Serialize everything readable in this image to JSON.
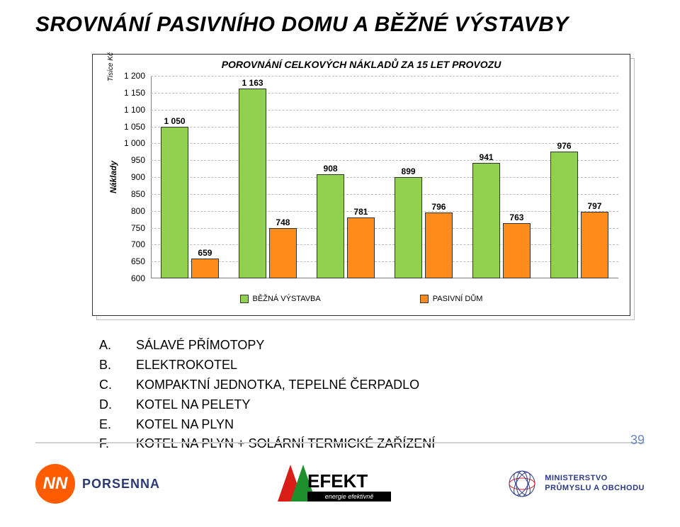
{
  "title": "SROVNÁNÍ PASIVNÍHO DOMU A BĚŽNÉ VÝSTAVBY",
  "chart": {
    "type": "bar",
    "title": "POROVNÁNÍ CELKOVÝCH NÁKLADŮ ZA 15 LET PROVOZU",
    "y_label_main": "Náklady",
    "y_label_unit": "Tisíce Kč",
    "ylim": [
      600,
      1200
    ],
    "ytick_step": 50,
    "yticks": [
      "600",
      "650",
      "700",
      "750",
      "800",
      "850",
      "900",
      "950",
      "1 000",
      "1 050",
      "1 100",
      "1 150",
      "1 200"
    ],
    "series": [
      {
        "name": "BĚŽNÁ VÝSTAVBA",
        "color": "#92d050",
        "values": [
          1050,
          1163,
          908,
          899,
          941,
          976
        ]
      },
      {
        "name": "PASIVNÍ DŮM",
        "color": "#ff8c1a",
        "values": [
          659,
          748,
          781,
          796,
          763,
          797
        ]
      }
    ],
    "value_labels_a": [
      "1 050",
      "1 163",
      "908",
      "899",
      "941",
      "976"
    ],
    "value_labels_b": [
      "659",
      "748",
      "781",
      "796",
      "763",
      "797"
    ],
    "categories_count": 6,
    "grid_color": "#bdbdbd",
    "background_color": "#ffffff",
    "bar_border_color": "#333333",
    "bar_group_gap_rel": 0.04,
    "bar_width_rel": 0.35,
    "label_fontsize": 12,
    "title_fontsize": 14
  },
  "list": [
    {
      "letter": "A.",
      "text": "SÁLAVÉ PŘÍMOTOPY"
    },
    {
      "letter": "B.",
      "text": "ELEKTROKOTEL"
    },
    {
      "letter": "C.",
      "text": "KOMPAKTNÍ JEDNOTKA, TEPELNÉ ČERPADLO"
    },
    {
      "letter": "D.",
      "text": "KOTEL NA PELETY"
    },
    {
      "letter": "E.",
      "text": "KOTEL NA PLYN"
    },
    {
      "letter": "F.",
      "text": "KOTEL NA PLYN + SOLÁRNÍ TERMICKÉ ZAŘÍZENÍ"
    }
  ],
  "footer": {
    "porsenna_nn": "NN",
    "porsenna_text": "PORSENNA",
    "efekt_main": "EFEKT",
    "efekt_sub": "energie efektivně",
    "ministry_l1": "MINISTERSTVO",
    "ministry_l2": "PRŮMYSLU A OBCHODU"
  },
  "page_number": "39",
  "colors": {
    "title": "#000000",
    "page_num": "#6c8abf",
    "porsenna_orange": "#ff5c00",
    "porsenna_blue": "#2b3a70",
    "efekt_red": "#d91e18",
    "efekt_green": "#1e8f2c",
    "efekt_bar": "#000000",
    "ministry_blue": "#2b3a86"
  }
}
